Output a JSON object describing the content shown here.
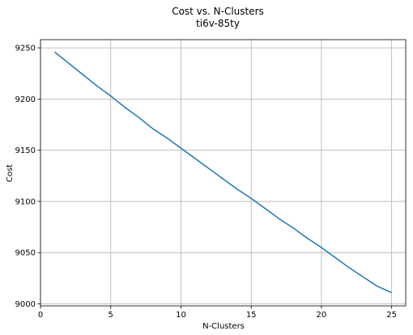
{
  "chart_data": {
    "type": "line",
    "title": "Cost vs. N-Clusters",
    "subtitle": "ti6v-85ty",
    "xlabel": "N-Clusters",
    "ylabel": "Cost",
    "xlim": [
      0,
      26
    ],
    "ylim": [
      8998,
      9258
    ],
    "x_ticks": [
      0,
      5,
      10,
      15,
      20,
      25
    ],
    "y_ticks": [
      9000,
      9050,
      9100,
      9150,
      9200,
      9250
    ],
    "grid": true,
    "series": [
      {
        "color": "#1f77b4",
        "x": [
          1,
          2,
          3,
          4,
          5,
          6,
          7,
          8,
          9,
          10,
          11,
          12,
          13,
          14,
          15,
          16,
          17,
          18,
          19,
          20,
          21,
          22,
          23,
          24,
          25
        ],
        "y": [
          9246,
          9235,
          9224,
          9213,
          9203,
          9192,
          9182,
          9171,
          9162,
          9152,
          9142,
          9132,
          9122,
          9112,
          9103,
          9093,
          9083,
          9074,
          9064,
          9055,
          9045,
          9035,
          9026,
          9017,
          9011
        ]
      }
    ]
  }
}
